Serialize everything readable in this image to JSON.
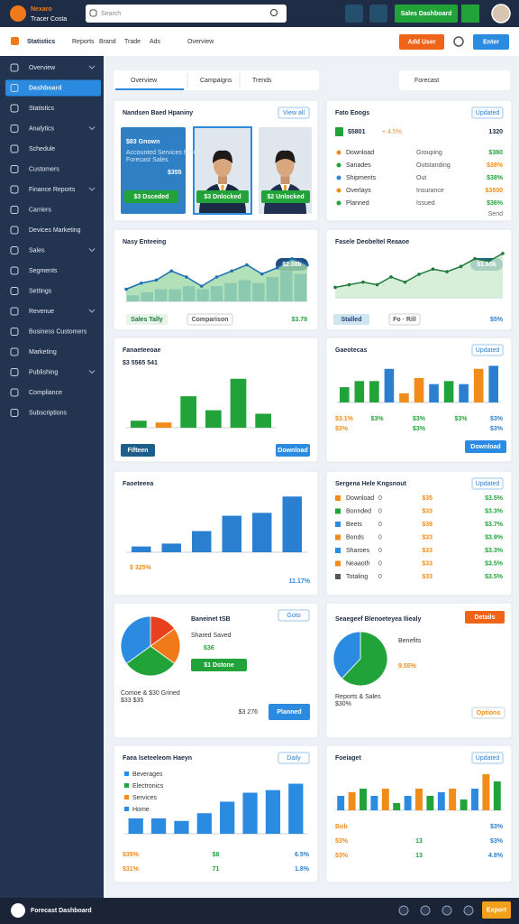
{
  "header": {
    "brand": "Nexaro",
    "brand_sub": "Tracer Costa",
    "search": "Search",
    "cta": "Sales Dashboard"
  },
  "nav": {
    "home": "Statistics",
    "items": [
      "Reports",
      "Brand",
      "Trade",
      "Ads",
      "Overview"
    ],
    "primary": "Add User",
    "secondary": "Enter"
  },
  "sidebar": {
    "active": 1,
    "items": [
      "Overview",
      "Dashboard",
      "Statistics",
      "Analytics",
      "Schedule",
      "Customers",
      "Finance Reports",
      "Carriers",
      "Devices Marketing",
      "Sales",
      "Segments",
      "Settings",
      "Revenue",
      "Business Customers",
      "Marketing",
      "Publishing",
      "Compliance",
      "Subscriptions"
    ]
  },
  "tabs": {
    "items": [
      "Overview",
      "Campaigns",
      "Trends"
    ],
    "right": "Forecast"
  },
  "cards": [
    {
      "kind": "profiles",
      "title": "Nandsen Baed Hpaniny",
      "action": "View all",
      "notes": [
        "$83 Gnown",
        "Accounted Services 68%",
        "Forecast Sales",
        "$355"
      ],
      "buttons": [
        "$3 Dsceded",
        "$3 Dnlocked",
        "$2 Unlocked"
      ]
    },
    {
      "kind": "list",
      "title": "Fato Eoogs",
      "action": "Updated",
      "notes": [
        "$5801",
        "+ 4.5%",
        "1320",
        "Send"
      ],
      "rows": [
        [
          "Download",
          "Grouping",
          "$380"
        ],
        [
          "Sanades",
          "Outstanding",
          "$38%"
        ],
        [
          "Shipments",
          "Out",
          "$38%"
        ],
        [
          "Overlays",
          "Insurance",
          "$3500"
        ],
        [
          "Planned",
          "Issued",
          "$36%"
        ]
      ]
    },
    {
      "kind": "line",
      "title": "Nasy Enteeing",
      "values": [
        2,
        3,
        3.5,
        5,
        4,
        2.5,
        4,
        5,
        6,
        4.5,
        5.5,
        7,
        6
      ],
      "bars": [
        1,
        1.5,
        2,
        2,
        2.5,
        2,
        2.5,
        3,
        3.5,
        3,
        4,
        5,
        4.5
      ],
      "ylim": [
        0,
        8
      ],
      "color": "#1f6fb5",
      "bar_color": "#3d8fd8",
      "area_color": "#9fd8a8",
      "notes": [
        "$2.08k",
        "$3.78"
      ],
      "buttons": [
        "Sales Tally",
        "Comparison"
      ]
    },
    {
      "kind": "line",
      "title": "Fasele Deobeltel Reaaoe",
      "values": [
        2,
        2.5,
        3,
        2.5,
        4,
        3,
        4.5,
        5.5,
        5,
        6,
        7.5,
        7,
        8.5
      ],
      "ylim": [
        0,
        9
      ],
      "color": "#1f7a3a",
      "area_color": "#cdebcf",
      "notes": [
        "$1.65k",
        "$5%"
      ],
      "buttons": [
        "Stalled",
        "Fo · Rill"
      ]
    },
    {
      "kind": "bar",
      "title": "Fanaeteeoae",
      "values": [
        2,
        1.5,
        9,
        5,
        14,
        4
      ],
      "ylim": [
        0,
        16
      ],
      "colors": [
        "#22a33a",
        "#f08c1a",
        "#22a33a",
        "#22a33a",
        "#22a33a",
        "#22a33a"
      ],
      "notes": [
        "$3 5565 541"
      ],
      "buttons": [
        "Fifteen",
        "Download"
      ]
    },
    {
      "kind": "bar",
      "title": "Gaeotecas",
      "action": "Updated",
      "values": [
        2.5,
        3.5,
        3.5,
        5.5,
        1.5,
        4,
        3,
        3.5,
        3,
        5.5,
        6
      ],
      "ylim": [
        0,
        6.5
      ],
      "colors": [
        "#22a33a",
        "#22a33a",
        "#22a33a",
        "#2a7fd0",
        "#f08c1a",
        "#f08c1a",
        "#2a7fd0",
        "#22a33a",
        "#2a7fd0",
        "#f08c1a",
        "#2a7fd0"
      ],
      "foot": [
        [
          "$3.1%",
          "$3%",
          "$3%",
          "$3%",
          "$3%"
        ],
        [
          "$3%",
          "$3%",
          "$3%"
        ]
      ],
      "buttons": [
        "Download"
      ]
    },
    {
      "kind": "bar",
      "title": "Faoeteeea",
      "values": [
        0.6,
        0.9,
        2.2,
        3.8,
        4.1,
        5.8
      ],
      "ylim": [
        0,
        6.2
      ],
      "color": "#2a7fd0",
      "notes": [
        "$ 325%",
        "11.17%"
      ]
    },
    {
      "kind": "table",
      "title": "Sergena Hele Kngsnout",
      "action": "Updated",
      "rows": [
        [
          "Download",
          "0",
          "$35",
          "$3.5%"
        ],
        [
          "Bonnded",
          "0",
          "$33",
          "$3.3%"
        ],
        [
          "Beets",
          "0",
          "$39",
          "$3.7%"
        ],
        [
          "Bonds",
          "0",
          "$33",
          "$3.9%"
        ],
        [
          "Sharoes",
          "0",
          "$33",
          "$3.3%"
        ],
        [
          "Neaaoth",
          "0",
          "$33",
          "$3.5%"
        ],
        [
          "Totaling",
          "0",
          "$33",
          "$3.5%"
        ]
      ]
    },
    {
      "kind": "pie",
      "title": "Baneinet tSB",
      "action": "Goto",
      "values": [
        15,
        20,
        30,
        35
      ],
      "colors": [
        "#e8401c",
        "#f07a1a",
        "#22a33a",
        "#2a8be0"
      ],
      "notes": [
        "Shared Saved",
        "$36",
        "Comoe & $30 Grined",
        "$33 $35",
        "$3 276"
      ],
      "buttons": [
        "$1 Dstone",
        "Planned"
      ]
    },
    {
      "kind": "pie",
      "title": "Seaegeef Blenoeteyea Iliealy",
      "values": [
        62,
        38
      ],
      "colors": [
        "#22a33a",
        "#2a8be0"
      ],
      "notes": [
        "Benefits",
        "9.55%",
        "Reports & Sales",
        "$30%"
      ],
      "buttons": [
        "Details",
        "Options"
      ]
    },
    {
      "kind": "bar",
      "title": "Faea Iseteeleom Haeyn",
      "action": "Daily",
      "legend": [
        "Beverages",
        "Electronics",
        "Services",
        "Home"
      ],
      "values": [
        1.2,
        1.2,
        1,
        1.6,
        2.5,
        3.2,
        3.4,
        3.9
      ],
      "ylim": [
        0,
        4.5
      ],
      "color": "#2a8be0",
      "foot": [
        [
          "$35%",
          "$8",
          "6.5%"
        ],
        [
          "$31%",
          "71",
          "1.8%"
        ]
      ]
    },
    {
      "kind": "bar",
      "title": "Foeiaget",
      "action": "Updated",
      "values": [
        2,
        2.5,
        3,
        2,
        3,
        1,
        2,
        3,
        2,
        2.5,
        3,
        1.5,
        3,
        5,
        4
      ],
      "ylim": [
        0,
        5.5
      ],
      "colors": [
        "#2a8be0",
        "#f08c1a",
        "#22a33a"
      ],
      "foot": [
        [
          "Bob",
          "$3%"
        ],
        [
          "$3%",
          "13",
          "$3%"
        ],
        [
          "$3%",
          "13",
          "4.8%"
        ]
      ]
    }
  ],
  "footer": {
    "brand": "Forecast Dashboard",
    "button": "Export"
  }
}
